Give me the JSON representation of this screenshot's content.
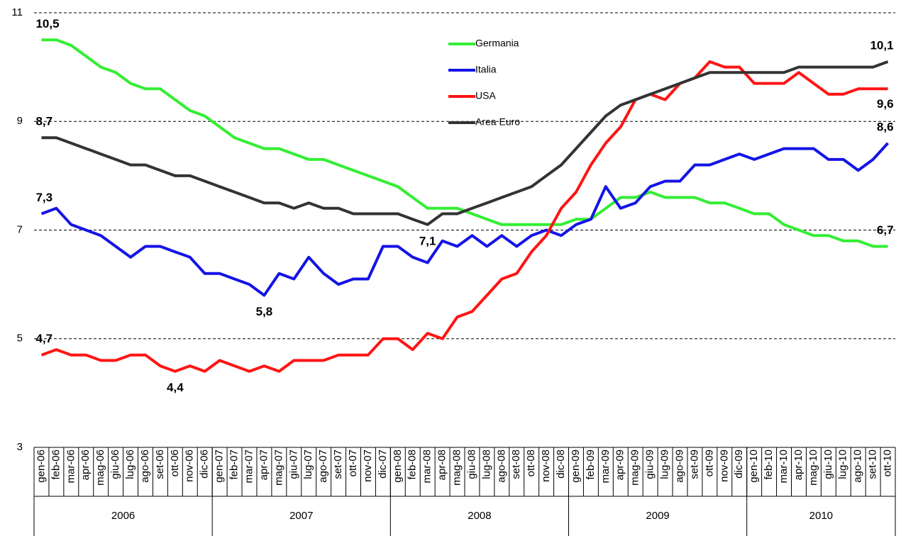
{
  "chart_data": {
    "type": "line",
    "categories": [
      "gen-06",
      "feb-06",
      "mar-06",
      "apr-06",
      "mag-06",
      "giu-06",
      "lug-06",
      "ago-06",
      "set-06",
      "ott-06",
      "nov-06",
      "dic-06",
      "gen-07",
      "feb-07",
      "mar-07",
      "apr-07",
      "mag-07",
      "giu-07",
      "lug-07",
      "ago-07",
      "set-07",
      "ott-07",
      "nov-07",
      "dic-07",
      "gen-08",
      "feb-08",
      "mar-08",
      "apr-08",
      "mag-08",
      "giu-08",
      "lug-08",
      "ago-08",
      "set-08",
      "ott-08",
      "nov-08",
      "dic-08",
      "gen-09",
      "feb-09",
      "mar-09",
      "apr-09",
      "mag-09",
      "giu-09",
      "lug-09",
      "ago-09",
      "set-09",
      "ott-09",
      "nov-09",
      "dic-09",
      "gen-10",
      "feb-10",
      "mar-10",
      "apr-10",
      "mag-10",
      "giu-10",
      "lug-10",
      "ago-10",
      "set-10",
      "ott-10"
    ],
    "year_labels": [
      "2006",
      "2007",
      "2008",
      "2009",
      "2010"
    ],
    "ylim": [
      3,
      11
    ],
    "yticks": [
      3,
      5,
      7,
      9,
      11
    ],
    "grid": true,
    "series": [
      {
        "name": "Germania",
        "color": "#33ee33",
        "values": [
          10.5,
          10.5,
          10.4,
          10.2,
          10.0,
          9.9,
          9.7,
          9.6,
          9.6,
          9.4,
          9.2,
          9.1,
          8.9,
          8.7,
          8.6,
          8.5,
          8.5,
          8.4,
          8.3,
          8.3,
          8.2,
          8.1,
          8.0,
          7.9,
          7.8,
          7.6,
          7.4,
          7.4,
          7.4,
          7.3,
          7.2,
          7.1,
          7.1,
          7.1,
          7.1,
          7.1,
          7.2,
          7.2,
          7.4,
          7.6,
          7.6,
          7.7,
          7.6,
          7.6,
          7.6,
          7.5,
          7.5,
          7.4,
          7.3,
          7.3,
          7.1,
          7.0,
          6.9,
          6.9,
          6.8,
          6.8,
          6.7,
          6.7
        ],
        "value_labels": [
          "10,5",
          null,
          null,
          null,
          null,
          null,
          null,
          null,
          null,
          null,
          null,
          null,
          null,
          null,
          null,
          null,
          null,
          null,
          null,
          null,
          null,
          null,
          null,
          null,
          null,
          null,
          null,
          null,
          null,
          null,
          null,
          null,
          null,
          null,
          null,
          null,
          null,
          null,
          null,
          null,
          null,
          null,
          null,
          null,
          null,
          null,
          null,
          null,
          null,
          null,
          null,
          null,
          null,
          null,
          null,
          null,
          null,
          "6,7"
        ]
      },
      {
        "name": "Italia",
        "color": "#1414e6",
        "values": [
          7.3,
          7.4,
          7.1,
          7.0,
          6.9,
          6.7,
          6.5,
          6.7,
          6.7,
          6.6,
          6.5,
          6.2,
          6.2,
          6.1,
          6.0,
          5.8,
          6.2,
          6.1,
          6.5,
          6.2,
          6.0,
          6.1,
          6.1,
          6.7,
          6.7,
          6.5,
          6.4,
          6.8,
          6.7,
          6.9,
          6.7,
          6.9,
          6.7,
          6.9,
          7.0,
          6.9,
          7.1,
          7.2,
          7.8,
          7.4,
          7.5,
          7.8,
          7.9,
          7.9,
          8.2,
          8.2,
          8.3,
          8.4,
          8.3,
          8.4,
          8.5,
          8.5,
          8.5,
          8.3,
          8.3,
          8.1,
          8.3,
          8.6
        ],
        "value_labels": [
          "7,3",
          null,
          null,
          null,
          null,
          null,
          null,
          null,
          null,
          null,
          null,
          null,
          null,
          null,
          null,
          "5,8",
          null,
          null,
          null,
          null,
          null,
          null,
          null,
          null,
          null,
          null,
          null,
          null,
          null,
          null,
          null,
          null,
          null,
          null,
          null,
          null,
          null,
          null,
          null,
          null,
          null,
          null,
          null,
          null,
          null,
          null,
          null,
          null,
          null,
          null,
          null,
          null,
          null,
          null,
          null,
          null,
          null,
          "8,6"
        ]
      },
      {
        "name": "USA",
        "color": "#ff1414",
        "values": [
          4.7,
          4.8,
          4.7,
          4.7,
          4.6,
          4.6,
          4.7,
          4.7,
          4.5,
          4.4,
          4.5,
          4.4,
          4.6,
          4.5,
          4.4,
          4.5,
          4.4,
          4.6,
          4.6,
          4.6,
          4.7,
          4.7,
          4.7,
          5.0,
          5.0,
          4.8,
          5.1,
          5.0,
          5.4,
          5.5,
          5.8,
          6.1,
          6.2,
          6.6,
          6.9,
          7.4,
          7.7,
          8.2,
          8.6,
          8.9,
          9.4,
          9.5,
          9.4,
          9.7,
          9.8,
          10.1,
          10.0,
          10.0,
          9.7,
          9.7,
          9.7,
          9.9,
          9.7,
          9.5,
          9.5,
          9.6,
          9.6,
          9.6
        ],
        "value_labels": [
          "4,7",
          null,
          null,
          null,
          null,
          null,
          null,
          null,
          null,
          "4,4",
          null,
          null,
          null,
          null,
          null,
          null,
          null,
          null,
          null,
          null,
          null,
          null,
          null,
          null,
          null,
          null,
          null,
          null,
          null,
          null,
          null,
          null,
          null,
          null,
          null,
          null,
          null,
          null,
          null,
          null,
          null,
          null,
          null,
          null,
          null,
          null,
          null,
          null,
          null,
          null,
          null,
          null,
          null,
          null,
          null,
          null,
          null,
          "9,6"
        ]
      },
      {
        "name": "Area Euro",
        "color": "#333333",
        "values": [
          8.7,
          8.7,
          8.6,
          8.5,
          8.4,
          8.3,
          8.2,
          8.2,
          8.1,
          8.0,
          8.0,
          7.9,
          7.8,
          7.7,
          7.6,
          7.5,
          7.5,
          7.4,
          7.5,
          7.4,
          7.4,
          7.3,
          7.3,
          7.3,
          7.3,
          7.2,
          7.1,
          7.3,
          7.3,
          7.4,
          7.5,
          7.6,
          7.7,
          7.8,
          8.0,
          8.2,
          8.5,
          8.8,
          9.1,
          9.3,
          9.4,
          9.5,
          9.6,
          9.7,
          9.8,
          9.9,
          9.9,
          9.9,
          9.9,
          9.9,
          9.9,
          10.0,
          10.0,
          10.0,
          10.0,
          10.0,
          10.0,
          10.1
        ],
        "value_labels": [
          "8,7",
          null,
          null,
          null,
          null,
          null,
          null,
          null,
          null,
          null,
          null,
          null,
          null,
          null,
          null,
          null,
          null,
          null,
          null,
          null,
          null,
          null,
          null,
          null,
          null,
          null,
          "7,1",
          null,
          null,
          null,
          null,
          null,
          null,
          null,
          null,
          null,
          null,
          null,
          null,
          null,
          null,
          null,
          null,
          null,
          null,
          null,
          null,
          null,
          null,
          null,
          null,
          null,
          null,
          null,
          null,
          null,
          null,
          "10,1"
        ]
      }
    ]
  }
}
